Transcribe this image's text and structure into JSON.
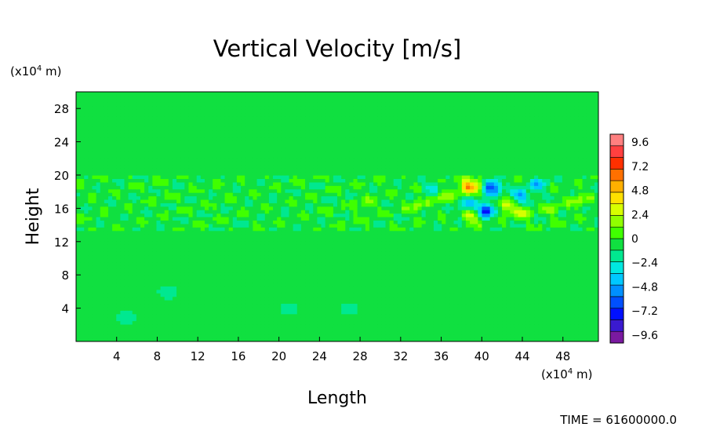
{
  "chart_data": {
    "type": "heatmap",
    "title": "Vertical Velocity [m/s]",
    "xlabel": "Length",
    "ylabel": "Height",
    "x_unit_prefix": "(x10",
    "x_unit_exp": "4",
    "x_unit_suffix": " m)",
    "y_unit_prefix": "(x10",
    "y_unit_exp": "4",
    "y_unit_suffix": " m)",
    "xlim": [
      0,
      51.5
    ],
    "ylim": [
      0,
      30
    ],
    "x_ticks": [
      4,
      8,
      12,
      16,
      20,
      24,
      28,
      32,
      36,
      40,
      44,
      48
    ],
    "y_ticks": [
      4,
      8,
      12,
      16,
      20,
      24,
      28
    ],
    "colorbar": {
      "range": [
        -10.4,
        10.4
      ],
      "tick_values": [
        9.6,
        7.2,
        4.8,
        2.4,
        0,
        -2.4,
        -4.8,
        -7.2,
        -9.6
      ],
      "tick_labels": [
        "9.6",
        "7.2",
        "4.8",
        "2.4",
        "0",
        "−2.4",
        "−4.8",
        "−7.2",
        "−9.6"
      ],
      "colors": [
        "#7a1aa0",
        "#3a1ad0",
        "#0010ff",
        "#0050ff",
        "#0090ff",
        "#00c8ff",
        "#00e8e0",
        "#00e890",
        "#10e040",
        "#40ff00",
        "#90ff00",
        "#d8ff00",
        "#ffe000",
        "#ffb000",
        "#ff7000",
        "#ff3000",
        "#ff4040",
        "#ff8080"
      ]
    },
    "field_features": [
      {
        "kind": "background",
        "value": -0.5
      },
      {
        "kind": "band",
        "y": [
          13.5,
          19.8
        ],
        "amplitude": 1.2
      },
      {
        "kind": "blob",
        "x": 38.5,
        "y": 18.6,
        "value": 4.8
      },
      {
        "kind": "blob",
        "x": 39.5,
        "y": 18.9,
        "value": 3.2
      },
      {
        "kind": "blob",
        "x": 41,
        "y": 18.6,
        "value": -7.2
      },
      {
        "kind": "blob",
        "x": 40.4,
        "y": 15.8,
        "value": -7.2
      },
      {
        "kind": "blob",
        "x": 39,
        "y": 15.2,
        "value": 4.0
      },
      {
        "kind": "blob",
        "x": 38.6,
        "y": 16.4,
        "value": -3.5
      },
      {
        "kind": "blob",
        "x": 42.5,
        "y": 16.2,
        "value": 3.5
      },
      {
        "kind": "blob",
        "x": 43.8,
        "y": 17.5,
        "value": -4.0
      },
      {
        "kind": "blob",
        "x": 44,
        "y": 15.5,
        "value": 2.4
      },
      {
        "kind": "blob",
        "x": 36,
        "y": 17.5,
        "value": 2.6
      },
      {
        "kind": "blob",
        "x": 33.5,
        "y": 16.5,
        "value": 2.0
      },
      {
        "kind": "blob",
        "x": 35.2,
        "y": 18.5,
        "value": -2.6
      },
      {
        "kind": "blob",
        "x": 45.5,
        "y": 18.8,
        "value": -3.0
      },
      {
        "kind": "blob",
        "x": 47,
        "y": 16,
        "value": 1.8
      },
      {
        "kind": "blob",
        "x": 49.5,
        "y": 17,
        "value": 2.2
      },
      {
        "kind": "blob",
        "x": 28.5,
        "y": 16.5,
        "value": 1.6
      },
      {
        "kind": "blob",
        "x": 21,
        "y": 4,
        "value": -1.6
      },
      {
        "kind": "blob",
        "x": 5,
        "y": 3,
        "value": -1.8
      },
      {
        "kind": "blob",
        "x": 9,
        "y": 6,
        "value": -1.8
      },
      {
        "kind": "blob",
        "x": 27,
        "y": 4,
        "value": -1.5
      }
    ],
    "time_label": "TIME = 61600000.0"
  }
}
